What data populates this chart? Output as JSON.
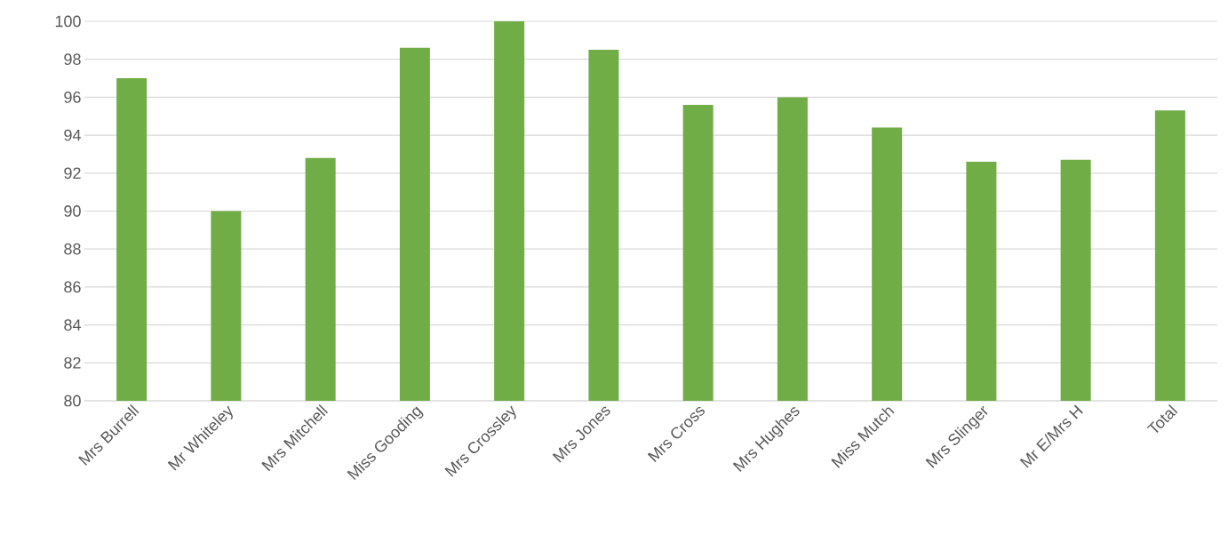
{
  "chart_data": {
    "type": "bar",
    "categories": [
      "Mrs Burrell",
      "Mr Whiteley",
      "Mrs Mitchell",
      "Miss Gooding",
      "Mrs Crossley",
      "Mrs Jones",
      "Mrs Cross",
      "Mrs Hughes",
      "Miss Mutch",
      "Mrs Slinger",
      "Mr E/Mrs H",
      "Total"
    ],
    "values": [
      97.0,
      90.0,
      92.8,
      98.6,
      100,
      98.5,
      95.6,
      96.0,
      94.4,
      92.6,
      92.7,
      95.3
    ],
    "color": "#70ad47",
    "ylim": [
      80,
      100
    ],
    "yticks": [
      80,
      82,
      84,
      86,
      88,
      90,
      92,
      94,
      96,
      98,
      100
    ],
    "grid": "y"
  }
}
